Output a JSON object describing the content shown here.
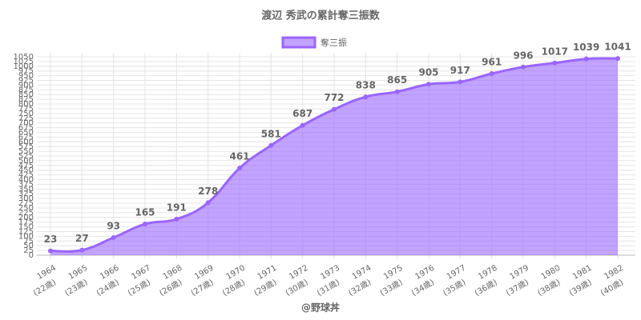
{
  "chart_data": {
    "type": "line",
    "title": "渡辺 秀武の累計奪三振数",
    "categories": [
      "1964",
      "1965",
      "1966",
      "1967",
      "1968",
      "1969",
      "1970",
      "1971",
      "1972",
      "1973",
      "1974",
      "1975",
      "1976",
      "1977",
      "1978",
      "1979",
      "1980",
      "1981",
      "1982"
    ],
    "category_sublabels": [
      "(22歳)",
      "(23歳)",
      "(24歳)",
      "(25歳)",
      "(26歳)",
      "(27歳)",
      "(28歳)",
      "(29歳)",
      "(30歳)",
      "(31歳)",
      "(32歳)",
      "(33歳)",
      "(34歳)",
      "(35歳)",
      "(36歳)",
      "(37歳)",
      "(38歳)",
      "(39歳)",
      "(40歳)"
    ],
    "series": [
      {
        "name": "奪三振",
        "color": "#9966ff",
        "fill": "rgba(153,102,255,0.6)",
        "values": [
          23,
          27,
          93,
          165,
          191,
          278,
          461,
          581,
          687,
          772,
          838,
          865,
          905,
          917,
          961,
          996,
          1017,
          1039,
          1041
        ]
      }
    ],
    "ylim": [
      0,
      1050
    ],
    "yticks": [
      0,
      25,
      50,
      75,
      100,
      125,
      150,
      175,
      200,
      225,
      250,
      275,
      300,
      325,
      350,
      375,
      400,
      425,
      450,
      475,
      500,
      525,
      550,
      575,
      600,
      625,
      650,
      675,
      700,
      725,
      750,
      775,
      800,
      825,
      850,
      875,
      900,
      925,
      950,
      975,
      1000,
      1025,
      1050
    ],
    "grid": true,
    "legend": "top",
    "footer": "@野球丼"
  }
}
